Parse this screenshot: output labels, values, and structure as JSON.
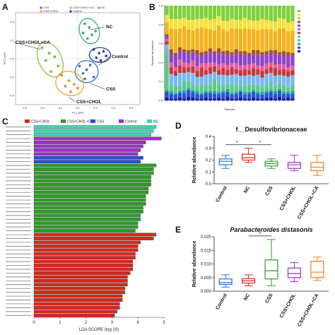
{
  "panels": {
    "a": "A",
    "b": "B",
    "c": "C",
    "d": "D",
    "e": "E"
  },
  "chart_data": [
    {
      "panel": "A",
      "type": "scatter",
      "title": "",
      "xlabel": "PC1 ##%",
      "ylabel": "PC2 ##%",
      "x_ticks": [
        "-0.6",
        "-0.4",
        "-0.2",
        "0.0",
        "0.2",
        "0.4",
        "0.6"
      ],
      "y_ticks": [
        "0.4",
        "0.2",
        "0.0",
        "-0.2",
        "-0.4"
      ],
      "legend": [
        "CSS",
        "CSS+CHOL+CA",
        "CSS+CHOL",
        "Control",
        "NC"
      ],
      "groups": [
        {
          "name": "NC",
          "color": "#38b56b",
          "points": [
            [
              0.08,
              0.38
            ],
            [
              0.13,
              0.34
            ],
            [
              0.06,
              0.28
            ],
            [
              0.16,
              0.26
            ],
            [
              0.11,
              0.22
            ],
            [
              0.2,
              0.3
            ]
          ]
        },
        {
          "name": "Control",
          "color": "#1f3c99",
          "points": [
            [
              0.18,
              0.1
            ],
            [
              0.24,
              0.06
            ],
            [
              0.29,
              0.08
            ],
            [
              0.21,
              0.01
            ],
            [
              0.32,
              0.03
            ],
            [
              0.26,
              -0.02
            ]
          ]
        },
        {
          "name": "CSS",
          "color": "#3b6fd8",
          "points": [
            [
              0.02,
              -0.08
            ],
            [
              0.1,
              -0.12
            ],
            [
              0.06,
              -0.16
            ],
            [
              0.14,
              -0.07
            ],
            [
              0.18,
              -0.2
            ],
            [
              0.08,
              -0.22
            ]
          ]
        },
        {
          "name": "CSS+CHOL+CA",
          "color": "#8cc63f",
          "points": [
            [
              -0.4,
              0.12
            ],
            [
              -0.32,
              0.06
            ],
            [
              -0.36,
              -0.02
            ],
            [
              -0.26,
              0.02
            ],
            [
              -0.22,
              -0.08
            ],
            [
              -0.3,
              -0.14
            ]
          ]
        },
        {
          "name": "CSS+CHOL",
          "color": "#f0a02a",
          "points": [
            [
              -0.18,
              -0.18
            ],
            [
              -0.1,
              -0.24
            ],
            [
              -0.14,
              -0.3
            ],
            [
              -0.04,
              -0.28
            ],
            [
              -0.08,
              -0.36
            ],
            [
              0.0,
              -0.32
            ]
          ]
        }
      ],
      "group_labels": [
        "NC",
        "CSS+CHOL+CA",
        "Control",
        "CSS",
        "CSS+CHOL"
      ]
    },
    {
      "panel": "B",
      "type": "bar",
      "title": "",
      "xlabel": "Samples",
      "ylabel": "Relative abundance",
      "stacked": true,
      "ylim": [
        0,
        1
      ],
      "y_ticks": [
        "1.0",
        "0.8",
        "0.6",
        "0.4",
        "0.2",
        "0.0"
      ],
      "num_samples": 30,
      "series": [
        {
          "color": "#1a1aa8",
          "values": [
            0.03,
            0.02,
            0.02,
            0.03,
            0.02,
            0.04,
            0.03,
            0.02,
            0.02,
            0.03,
            0.02,
            0.02,
            0.03,
            0.02,
            0.04,
            0.02,
            0.02,
            0.03,
            0.02,
            0.02,
            0.03,
            0.02,
            0.02,
            0.03,
            0.03,
            0.02,
            0.04,
            0.02,
            0.03,
            0.02
          ]
        },
        {
          "color": "#2a4fd6",
          "values": [
            0.06,
            0.05,
            0.04,
            0.05,
            0.06,
            0.07,
            0.06,
            0.05,
            0.04,
            0.05,
            0.06,
            0.05,
            0.04,
            0.06,
            0.05,
            0.04,
            0.05,
            0.06,
            0.04,
            0.05,
            0.06,
            0.05,
            0.04,
            0.05,
            0.06,
            0.05,
            0.06,
            0.05,
            0.04,
            0.05
          ]
        },
        {
          "color": "#20a6a0",
          "values": [
            0.02,
            0.03,
            0.02,
            0.02,
            0.03,
            0.02,
            0.02,
            0.03,
            0.02,
            0.02,
            0.02,
            0.03,
            0.02,
            0.02,
            0.03,
            0.02,
            0.02,
            0.02,
            0.03,
            0.02,
            0.02,
            0.02,
            0.03,
            0.02,
            0.02,
            0.03,
            0.02,
            0.02,
            0.02,
            0.03
          ]
        },
        {
          "color": "#5ec98a",
          "values": [
            0.4,
            0.06,
            0.08,
            0.05,
            0.1,
            0.07,
            0.06,
            0.05,
            0.08,
            0.07,
            0.06,
            0.12,
            0.08,
            0.06,
            0.05,
            0.09,
            0.07,
            0.05,
            0.06,
            0.08,
            0.06,
            0.07,
            0.05,
            0.06,
            0.08,
            0.05,
            0.06,
            0.07,
            0.05,
            0.06
          ]
        },
        {
          "color": "#7ab8f0",
          "values": [
            0.08,
            0.12,
            0.1,
            0.14,
            0.08,
            0.1,
            0.12,
            0.1,
            0.09,
            0.1,
            0.12,
            0.08,
            0.1,
            0.11,
            0.09,
            0.1,
            0.12,
            0.1,
            0.11,
            0.1,
            0.09,
            0.11,
            0.1,
            0.12,
            0.1,
            0.11,
            0.09,
            0.1,
            0.11,
            0.1
          ]
        },
        {
          "color": "#c43a3a",
          "values": [
            0.03,
            0.07,
            0.05,
            0.08,
            0.06,
            0.05,
            0.07,
            0.06,
            0.1,
            0.05,
            0.07,
            0.06,
            0.05,
            0.07,
            0.06,
            0.08,
            0.05,
            0.06,
            0.07,
            0.05,
            0.08,
            0.06,
            0.07,
            0.05,
            0.06,
            0.08,
            0.05,
            0.07,
            0.06,
            0.05
          ]
        },
        {
          "color": "#e85aa0",
          "values": [
            0.03,
            0.05,
            0.04,
            0.06,
            0.05,
            0.04,
            0.06,
            0.05,
            0.04,
            0.07,
            0.05,
            0.04,
            0.06,
            0.05,
            0.05,
            0.04,
            0.06,
            0.05,
            0.04,
            0.06,
            0.05,
            0.04,
            0.05,
            0.06,
            0.05,
            0.04,
            0.06,
            0.05,
            0.04,
            0.05
          ]
        },
        {
          "color": "#8e44c8",
          "values": [
            0.03,
            0.1,
            0.12,
            0.08,
            0.11,
            0.1,
            0.09,
            0.12,
            0.08,
            0.1,
            0.11,
            0.09,
            0.12,
            0.1,
            0.11,
            0.09,
            0.1,
            0.12,
            0.11,
            0.09,
            0.1,
            0.11,
            0.12,
            0.09,
            0.1,
            0.11,
            0.1,
            0.09,
            0.12,
            0.1
          ]
        },
        {
          "color": "#a1532a",
          "values": [
            0.02,
            0.04,
            0.03,
            0.05,
            0.03,
            0.04,
            0.03,
            0.05,
            0.04,
            0.03,
            0.04,
            0.03,
            0.05,
            0.03,
            0.04,
            0.03,
            0.05,
            0.03,
            0.04,
            0.03,
            0.04,
            0.05,
            0.03,
            0.04,
            0.03,
            0.04,
            0.03,
            0.05,
            0.04,
            0.03
          ]
        },
        {
          "color": "#f5b21b",
          "values": [
            0.12,
            0.22,
            0.25,
            0.2,
            0.24,
            0.22,
            0.2,
            0.23,
            0.26,
            0.24,
            0.2,
            0.22,
            0.24,
            0.23,
            0.2,
            0.25,
            0.22,
            0.23,
            0.24,
            0.25,
            0.22,
            0.21,
            0.24,
            0.23,
            0.22,
            0.2,
            0.25,
            0.24,
            0.22,
            0.23
          ]
        },
        {
          "color": "#f7e03a",
          "values": [
            0.08,
            0.1,
            0.11,
            0.1,
            0.09,
            0.1,
            0.11,
            0.1,
            0.09,
            0.11,
            0.1,
            0.12,
            0.1,
            0.09,
            0.11,
            0.1,
            0.09,
            0.1,
            0.11,
            0.1,
            0.09,
            0.1,
            0.11,
            0.1,
            0.09,
            0.1,
            0.11,
            0.1,
            0.09,
            0.1
          ]
        },
        {
          "color": "#7fd13b",
          "values": [
            0.1,
            0.14,
            0.14,
            0.14,
            0.13,
            0.15,
            0.15,
            0.14,
            0.14,
            0.13,
            0.15,
            0.14,
            0.11,
            0.16,
            0.16,
            0.14,
            0.15,
            0.15,
            0.13,
            0.15,
            0.16,
            0.16,
            0.14,
            0.15,
            0.16,
            0.17,
            0.13,
            0.14,
            0.18,
            0.16
          ]
        }
      ]
    },
    {
      "panel": "C",
      "type": "bar",
      "orientation": "horizontal",
      "title": "",
      "xlabel": "LDA SCORE (log 10)",
      "x_ticks": [
        "0",
        "1",
        "2",
        "3",
        "4",
        "5"
      ],
      "xlim": [
        0,
        5
      ],
      "legend": [
        "CSS+CHOL",
        "CSS+CHOL+CA",
        "CSS",
        "Control",
        "NC"
      ],
      "legend_colors": [
        "#d9261c",
        "#2f9a2a",
        "#2a4fd6",
        "#9b30c8",
        "#3fd6b2"
      ],
      "groups": [
        {
          "name": "NC",
          "color": "#3fd6b2",
          "values": [
            4.7,
            4.6,
            4.5
          ]
        },
        {
          "name": "Control",
          "color": "#9b30c8",
          "values": [
            4.9,
            4.3,
            4.2,
            4.1,
            4.0
          ]
        },
        {
          "name": "CSS",
          "color": "#2a4fd6",
          "values": [
            4.2,
            4.1
          ]
        },
        {
          "name": "CSS+CHOL+CA",
          "color": "#2f9a2a",
          "values": [
            4.7,
            4.6,
            4.6,
            4.5,
            4.5,
            4.5,
            4.4,
            4.4,
            4.3,
            4.3,
            4.3,
            4.2,
            4.2,
            4.1,
            4.1,
            4.0,
            4.0,
            3.9
          ]
        },
        {
          "name": "CSS+CHOL",
          "color": "#d9261c",
          "values": [
            4.7,
            4.6,
            4.1,
            4.0,
            4.0,
            3.9,
            3.9,
            3.8,
            3.8,
            3.8,
            3.7,
            3.6,
            3.6,
            3.6,
            3.5,
            3.5,
            3.4,
            3.4,
            3.3,
            3.3,
            3.2,
            3.1
          ]
        }
      ]
    },
    {
      "panel": "D",
      "type": "box",
      "title": "f__Desulfovibrionaceae",
      "xlabel": "",
      "ylabel": "Relative abundance",
      "ylim": [
        0,
        0.4
      ],
      "y_ticks": [
        "0.0",
        "0.1",
        "0.2",
        "0.3",
        "0.4"
      ],
      "categories": [
        "Control",
        "NC",
        "CSS",
        "CSS+CHOL",
        "CSS+CHOL+CA"
      ],
      "colors": [
        "#2a6fd6",
        "#d9261c",
        "#2f9a2a",
        "#9b30c8",
        "#f07d1f"
      ],
      "boxes": [
        {
          "min": 0.13,
          "q1": 0.16,
          "median": 0.19,
          "q3": 0.21,
          "max": 0.24
        },
        {
          "min": 0.18,
          "q1": 0.2,
          "median": 0.22,
          "q3": 0.25,
          "max": 0.3
        },
        {
          "min": 0.13,
          "q1": 0.15,
          "median": 0.17,
          "q3": 0.19,
          "max": 0.21
        },
        {
          "min": 0.11,
          "q1": 0.13,
          "median": 0.16,
          "q3": 0.18,
          "max": 0.24
        },
        {
          "min": 0.07,
          "q1": 0.11,
          "median": 0.14,
          "q3": 0.18,
          "max": 0.24
        }
      ],
      "significance": [
        {
          "from": 0,
          "to": 1,
          "label": "*"
        },
        {
          "from": 1,
          "to": 2,
          "label": "*"
        }
      ]
    },
    {
      "panel": "E",
      "type": "box",
      "title": "Parabacteroides distasonis",
      "xlabel": "",
      "ylabel": "Relative abundance",
      "ylim": [
        0,
        0.02
      ],
      "y_ticks": [
        "0.000",
        "0.005",
        "0.010",
        "0.015",
        "0.020"
      ],
      "categories": [
        "Control",
        "NC",
        "CSS",
        "CSS+CHOL",
        "CSS+CHOL+CA"
      ],
      "colors": [
        "#2a6fd6",
        "#d9261c",
        "#2f9a2a",
        "#9b30c8",
        "#f07d1f"
      ],
      "boxes": [
        {
          "min": 0.0015,
          "q1": 0.0025,
          "median": 0.0032,
          "q3": 0.0045,
          "max": 0.006
        },
        {
          "min": 0.002,
          "q1": 0.003,
          "median": 0.0038,
          "q3": 0.0046,
          "max": 0.006
        },
        {
          "min": 0.002,
          "q1": 0.0045,
          "median": 0.0075,
          "q3": 0.0115,
          "max": 0.019
        },
        {
          "min": 0.0035,
          "q1": 0.005,
          "median": 0.0065,
          "q3": 0.0085,
          "max": 0.0105
        },
        {
          "min": 0.004,
          "q1": 0.005,
          "median": 0.007,
          "q3": 0.011,
          "max": 0.0125
        }
      ],
      "significance": [
        {
          "from": 1,
          "to": 2,
          "label": "*"
        }
      ]
    }
  ]
}
